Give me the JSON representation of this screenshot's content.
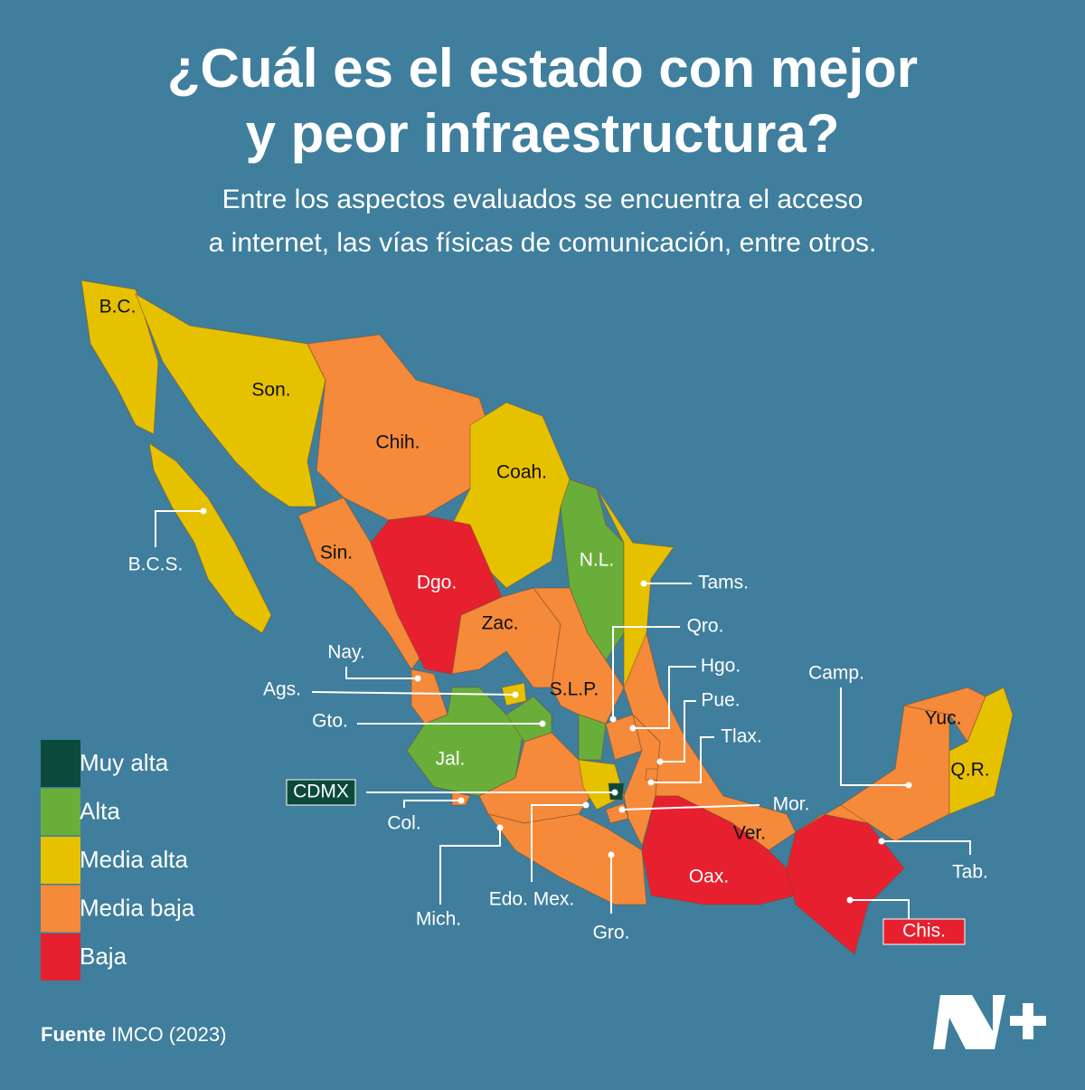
{
  "title": [
    "¿Cuál es el estado con mejor",
    "y peor infraestructura?"
  ],
  "subtitle": [
    "Entre los aspectos evaluados se encuentra el acceso",
    "a internet, las vías físicas de comunicación, entre otros."
  ],
  "legend": [
    {
      "label": "Muy alta",
      "color": "#0b4a3b"
    },
    {
      "label": "Alta",
      "color": "#6aae3a"
    },
    {
      "label": "Media alta",
      "color": "#e6c100"
    },
    {
      "label": "Media baja",
      "color": "#f48a3a"
    },
    {
      "label": "Baja",
      "color": "#e6202e"
    }
  ],
  "states": [
    {
      "label": "B.C.",
      "level": "Media alta"
    },
    {
      "label": "B.C.S.",
      "level": "Media alta"
    },
    {
      "label": "Son.",
      "level": "Media alta"
    },
    {
      "label": "Chih.",
      "level": "Media baja"
    },
    {
      "label": "Coah.",
      "level": "Media alta"
    },
    {
      "label": "N.L.",
      "level": "Alta"
    },
    {
      "label": "Tams.",
      "level": "Media alta"
    },
    {
      "label": "Sin.",
      "level": "Media baja"
    },
    {
      "label": "Dgo.",
      "level": "Baja"
    },
    {
      "label": "Zac.",
      "level": "Media baja"
    },
    {
      "label": "S.L.P.",
      "level": "Media baja"
    },
    {
      "label": "Nay.",
      "level": "Media baja"
    },
    {
      "label": "Ags.",
      "level": "Media alta"
    },
    {
      "label": "Jal.",
      "level": "Alta"
    },
    {
      "label": "Gto.",
      "level": "Alta"
    },
    {
      "label": "Qro.",
      "level": "Alta"
    },
    {
      "label": "Hgo.",
      "level": "Media baja"
    },
    {
      "label": "Col.",
      "level": "Media baja"
    },
    {
      "label": "Mich.",
      "level": "Media baja"
    },
    {
      "label": "Edo. Mex.",
      "level": "Media alta"
    },
    {
      "label": "CDMX",
      "level": "Muy alta"
    },
    {
      "label": "Mor.",
      "level": "Media baja"
    },
    {
      "label": "Gro.",
      "level": "Media baja"
    },
    {
      "label": "Pue.",
      "level": "Media baja"
    },
    {
      "label": "Tlax.",
      "level": "Media baja"
    },
    {
      "label": "Ver.",
      "level": "Media baja"
    },
    {
      "label": "Oax.",
      "level": "Baja"
    },
    {
      "label": "Chis.",
      "level": "Baja"
    },
    {
      "label": "Tab.",
      "level": "Media baja"
    },
    {
      "label": "Camp.",
      "level": "Media baja"
    },
    {
      "label": "Yuc.",
      "level": "Media baja"
    },
    {
      "label": "Q.R.",
      "level": "Media alta"
    }
  ],
  "source": {
    "label": "Fuente",
    "text": "IMCO (2023)"
  }
}
